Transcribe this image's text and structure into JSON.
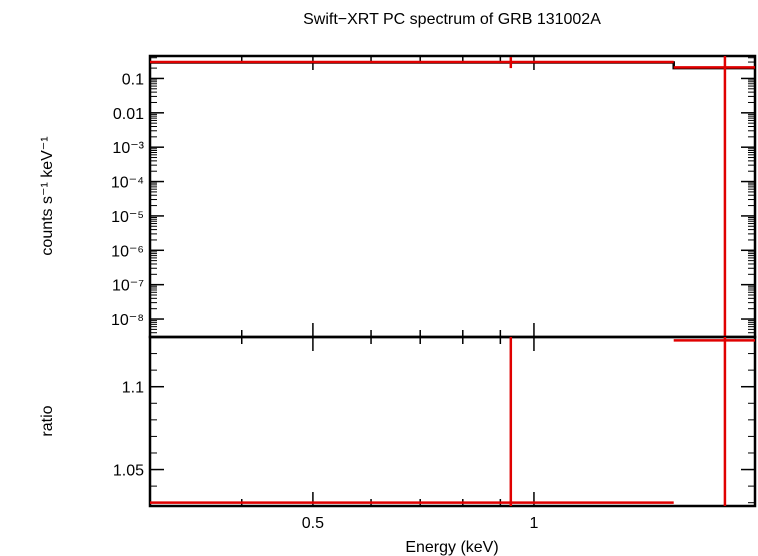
{
  "chart_data": {
    "type": "line",
    "title": "Swift−XRT PC spectrum of GRB 131002A",
    "xlabel": "Energy (keV)",
    "x_scale": "log",
    "xlim": [
      0.3,
      2.0
    ],
    "x_ticks": [
      {
        "value": 0.5,
        "label": "0.5"
      },
      {
        "value": 1,
        "label": "1"
      }
    ],
    "panels": [
      {
        "id": "spectrum",
        "ylabel": "counts s⁻¹ keV⁻¹",
        "y_scale": "log",
        "ylim": [
          3e-09,
          0.45
        ],
        "y_ticks": [
          {
            "value": 0.1,
            "label": "0.1"
          },
          {
            "value": 0.01,
            "label": "0.01"
          },
          {
            "value": 0.001,
            "label": "10⁻³"
          },
          {
            "value": 0.0001,
            "label": "10⁻⁴"
          },
          {
            "value": 1e-05,
            "label": "10⁻⁵"
          },
          {
            "value": 1e-06,
            "label": "10⁻⁶"
          },
          {
            "value": 1e-07,
            "label": "10⁻⁷"
          },
          {
            "value": 1e-08,
            "label": "10⁻⁸"
          }
        ],
        "series": [
          {
            "kind": "model-step",
            "color": "#000000",
            "steps": [
              {
                "x0": 0.3,
                "x1": 1.55,
                "y": 0.29
              },
              {
                "x0": 1.55,
                "x1": 2.0,
                "y": 0.2
              }
            ]
          },
          {
            "kind": "data-points",
            "color": "#e00000",
            "points": [
              {
                "x0": 0.3,
                "x1": 1.55,
                "x": 0.93,
                "y": 0.3,
                "y_lo": 0.2,
                "y_hi": 0.42
              },
              {
                "x0": 1.55,
                "x1": 2.0,
                "x": 1.82,
                "y": 0.21,
                "y_lo": 2e-09,
                "y_hi": 1.0
              }
            ]
          }
        ]
      },
      {
        "id": "ratio",
        "ylabel": "ratio",
        "y_scale": "linear",
        "ylim": [
          1.028,
          1.13
        ],
        "y_ticks": [
          {
            "value": 1.1,
            "label": "1.1"
          },
          {
            "value": 1.05,
            "label": "1.05"
          }
        ],
        "series": [
          {
            "kind": "data-points",
            "color": "#e00000",
            "points": [
              {
                "x0": 0.3,
                "x1": 1.55,
                "x": 0.93,
                "y": 1.03,
                "y_lo": 1.0,
                "y_hi": 1.13
              },
              {
                "x0": 1.55,
                "x1": 2.0,
                "x": 1.82,
                "y": 1.128,
                "y_lo": 1.0,
                "y_hi": 1.2
              }
            ]
          }
        ]
      }
    ]
  }
}
